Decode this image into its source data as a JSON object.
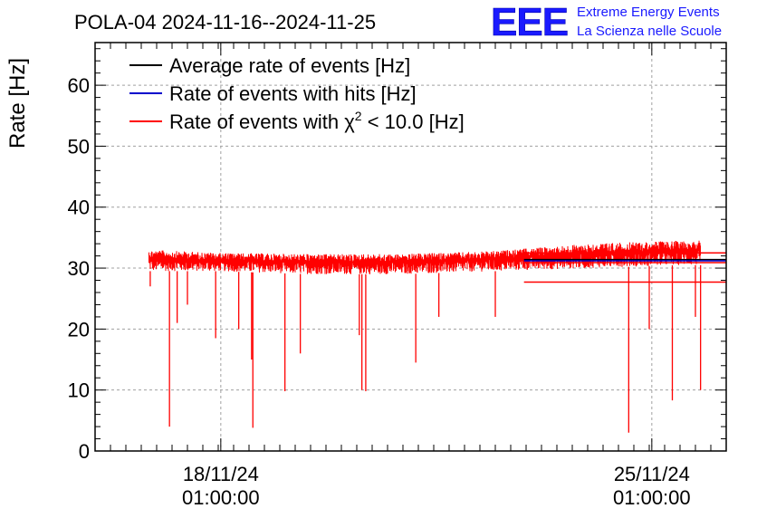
{
  "header": {
    "title": "POLA-04 2024-11-16--2024-11-25",
    "logo_text": "EEE",
    "brand_line1": "Extreme Energy Events",
    "brand_line2": "La Scienza nelle Scuole"
  },
  "colors": {
    "average": "#000000",
    "hits": "#0000cc",
    "chi2": "#ff0000",
    "brand": "#1a1aff",
    "grid": "#a0a0a0"
  },
  "chart_data": {
    "type": "line",
    "title": "POLA-04 2024-11-16--2024-11-25",
    "ylabel": "Rate [Hz]",
    "xlabel": "",
    "ylim": [
      0,
      67
    ],
    "yticks": [
      0,
      10,
      20,
      30,
      40,
      50,
      60
    ],
    "x_start": "2024-11-16 00:00",
    "x_end": "2024-11-26 06:00",
    "xticks": [
      {
        "date": "2024-11-18 01:00",
        "line1": "18/11/24",
        "line2": "01:00:00"
      },
      {
        "date": "2024-11-25 01:00",
        "line1": "25/11/24",
        "line2": "01:00:00"
      }
    ],
    "grid": true,
    "legend_position": "top-left",
    "series": [
      {
        "name": "Average rate of events [Hz]",
        "color": "#000000",
        "baseline": 31.5
      },
      {
        "name": "Rate of events with hits [Hz]",
        "color": "#0000cc",
        "baseline": 31.5
      },
      {
        "name": "Rate of events with χ² < 10.0 [Hz]",
        "color": "#ff0000",
        "band": [
          {
            "date": "2024-11-16 21:00",
            "low": 29.5,
            "high": 33.0
          },
          {
            "date": "2024-11-18 00:00",
            "low": 29.5,
            "high": 32.5
          },
          {
            "date": "2024-11-19 12:00",
            "low": 29.0,
            "high": 32.3
          },
          {
            "date": "2024-11-21 00:00",
            "low": 29.0,
            "high": 32.3
          },
          {
            "date": "2024-11-22 12:00",
            "low": 29.5,
            "high": 32.8
          },
          {
            "date": "2024-11-24 00:00",
            "low": 30.0,
            "high": 34.0
          },
          {
            "date": "2024-11-25 12:00",
            "low": 30.5,
            "high": 34.5
          },
          {
            "date": "2024-11-25 20:00",
            "low": 30.5,
            "high": 34.5
          }
        ],
        "dips": [
          {
            "date": "2024-11-16 21:30",
            "value": 27
          },
          {
            "date": "2024-11-17 05:00",
            "value": 4
          },
          {
            "date": "2024-11-17 08:00",
            "value": 21
          },
          {
            "date": "2024-11-17 12:00",
            "value": 24
          },
          {
            "date": "2024-11-17 23:00",
            "value": 18.5
          },
          {
            "date": "2024-11-18 08:00",
            "value": 20
          },
          {
            "date": "2024-11-18 13:00",
            "value": 15
          },
          {
            "date": "2024-11-18 13:30",
            "value": 3.8
          },
          {
            "date": "2024-11-19 02:00",
            "value": 9.8
          },
          {
            "date": "2024-11-19 08:00",
            "value": 16
          },
          {
            "date": "2024-11-20 07:00",
            "value": 19
          },
          {
            "date": "2024-11-20 08:00",
            "value": 10
          },
          {
            "date": "2024-11-20 09:30",
            "value": 9.8
          },
          {
            "date": "2024-11-21 05:00",
            "value": 14.5
          },
          {
            "date": "2024-11-21 14:00",
            "value": 22
          },
          {
            "date": "2024-11-22 12:00",
            "value": 22
          },
          {
            "date": "2024-11-24 16:00",
            "value": 3
          },
          {
            "date": "2024-11-25 00:00",
            "value": 20
          },
          {
            "date": "2024-11-25 09:00",
            "value": 8.3
          },
          {
            "date": "2024-11-25 18:00",
            "value": 22
          },
          {
            "date": "2024-11-25 20:00",
            "value": 10
          }
        ]
      }
    ],
    "tail_lines": [
      {
        "value": 32.5,
        "color": "#ff0000"
      },
      {
        "value": 31.4,
        "color": "#000000"
      },
      {
        "value": 31.2,
        "color": "#0000cc"
      },
      {
        "value": 30.9,
        "color": "#ff0000"
      },
      {
        "value": 27.7,
        "color": "#ff0000"
      }
    ]
  },
  "legend": {
    "average_label": "Average rate of events [Hz]",
    "hits_label": "Rate of events with hits [Hz]",
    "chi2_prefix": "Rate of events with ",
    "chi2_symbol": "χ",
    "chi2_sup": "2",
    "chi2_suffix": " < 10.0 [Hz]"
  }
}
